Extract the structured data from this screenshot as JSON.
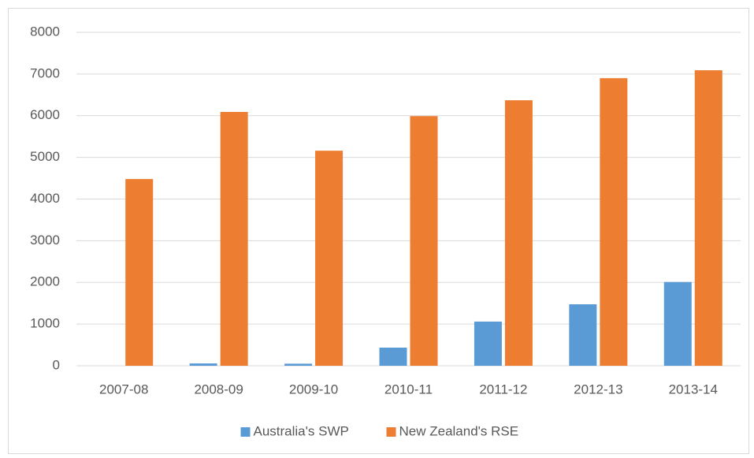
{
  "chart_data": {
    "type": "bar",
    "categories": [
      "2007-08",
      "2008-09",
      "2009-10",
      "2010-11",
      "2011-12",
      "2012-13",
      "2013-14"
    ],
    "series": [
      {
        "name": "Australia's SWP",
        "color": "#5b9bd5",
        "values": [
          0,
          56,
          50,
          435,
          1060,
          1475,
          2010
        ]
      },
      {
        "name": "New Zealand's RSE",
        "color": "#ed7d31",
        "values": [
          4480,
          6090,
          5160,
          5990,
          6370,
          6900,
          7090
        ]
      }
    ],
    "ylim": [
      0,
      8000
    ],
    "yticks": [
      0,
      1000,
      2000,
      3000,
      4000,
      5000,
      6000,
      7000,
      8000
    ],
    "grid": true,
    "legend": "bottom"
  }
}
